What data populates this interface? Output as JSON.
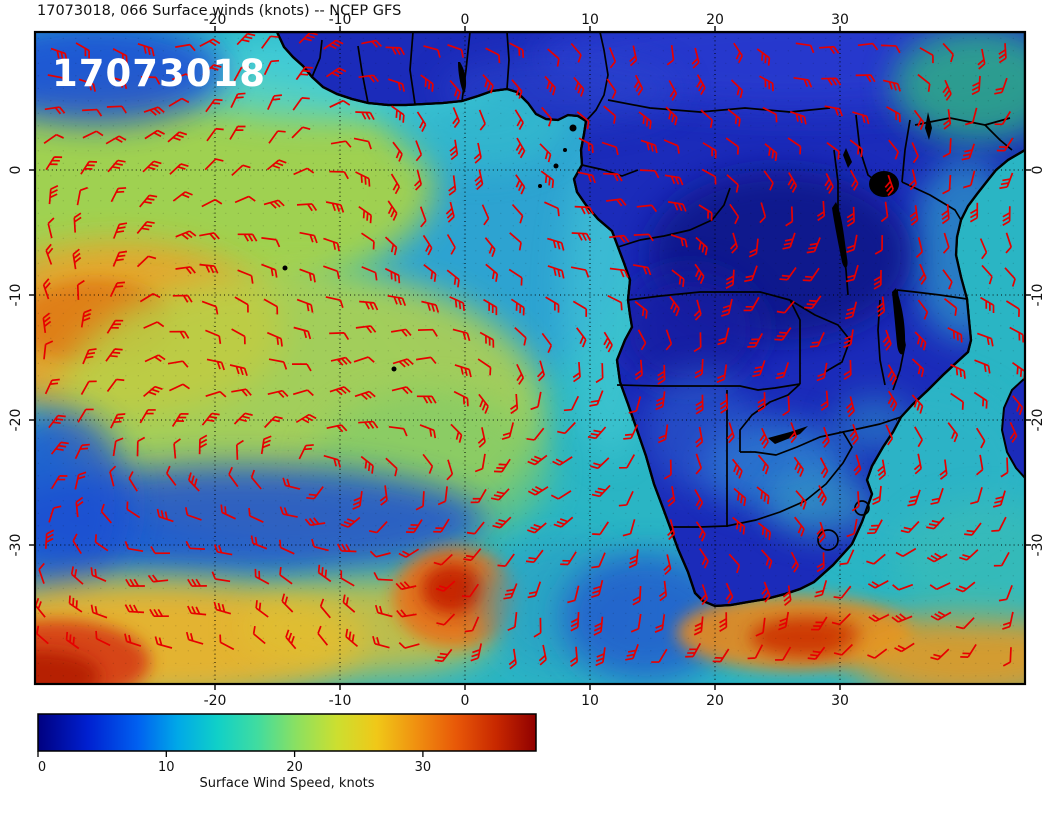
{
  "figure": {
    "title": "17073018, 066 Surface winds (knots) -- NCEP GFS",
    "stamp": "17073018"
  },
  "axes": {
    "top_ticks": [
      "-20",
      "-10",
      "0",
      "10",
      "20",
      "30"
    ],
    "bottom_ticks": [
      "-20",
      "-10",
      "0",
      "10",
      "20",
      "30"
    ],
    "left_ticks": [
      "0",
      "-10",
      "-20",
      "-30"
    ],
    "right_ticks": [
      "0",
      "-10",
      "-20",
      "-30"
    ],
    "lon_values": [
      -20,
      -10,
      0,
      10,
      20,
      30
    ],
    "lat_values": [
      0,
      -10,
      -20,
      -30
    ]
  },
  "colorbar": {
    "label": "Surface Wind Speed, knots",
    "ticks": [
      "0",
      "10",
      "20",
      "30"
    ],
    "tick_values": [
      0,
      10,
      20,
      30
    ],
    "gradient": [
      [
        "0.00",
        "#000080"
      ],
      [
        "0.10",
        "#0020d0"
      ],
      [
        "0.20",
        "#0060f0"
      ],
      [
        "0.28",
        "#00a8e8"
      ],
      [
        "0.36",
        "#10d0c8"
      ],
      [
        "0.44",
        "#40dca0"
      ],
      [
        "0.52",
        "#8ce060"
      ],
      [
        "0.60",
        "#ccdf30"
      ],
      [
        "0.68",
        "#f0c818"
      ],
      [
        "0.76",
        "#f09010"
      ],
      [
        "0.84",
        "#e85808"
      ],
      [
        "0.92",
        "#c82800"
      ],
      [
        "1.00",
        "#900000"
      ]
    ]
  },
  "map": {
    "region": "Africa and South Atlantic",
    "wind_barb_color": "#e60000",
    "coast_color": "#000000",
    "grid_style": "dotted"
  },
  "chart_data": {
    "type": "heatmap",
    "title": "17073018, 066 Surface winds (knots) -- NCEP GFS",
    "variable": "Surface wind speed",
    "units": "knots",
    "model": "NCEP GFS",
    "run": "17073018",
    "forecast_hour": "066",
    "x_ticks_lon": [
      -20,
      -10,
      0,
      10,
      20,
      30
    ],
    "y_ticks_lat": [
      0,
      -10,
      -20,
      -30
    ],
    "colorbar_ticks": [
      0,
      10,
      20,
      30
    ],
    "colorbar_label": "Surface Wind Speed, knots",
    "overlay": "red wind barbs on speed-colored field with dotted lat/lon grid"
  }
}
